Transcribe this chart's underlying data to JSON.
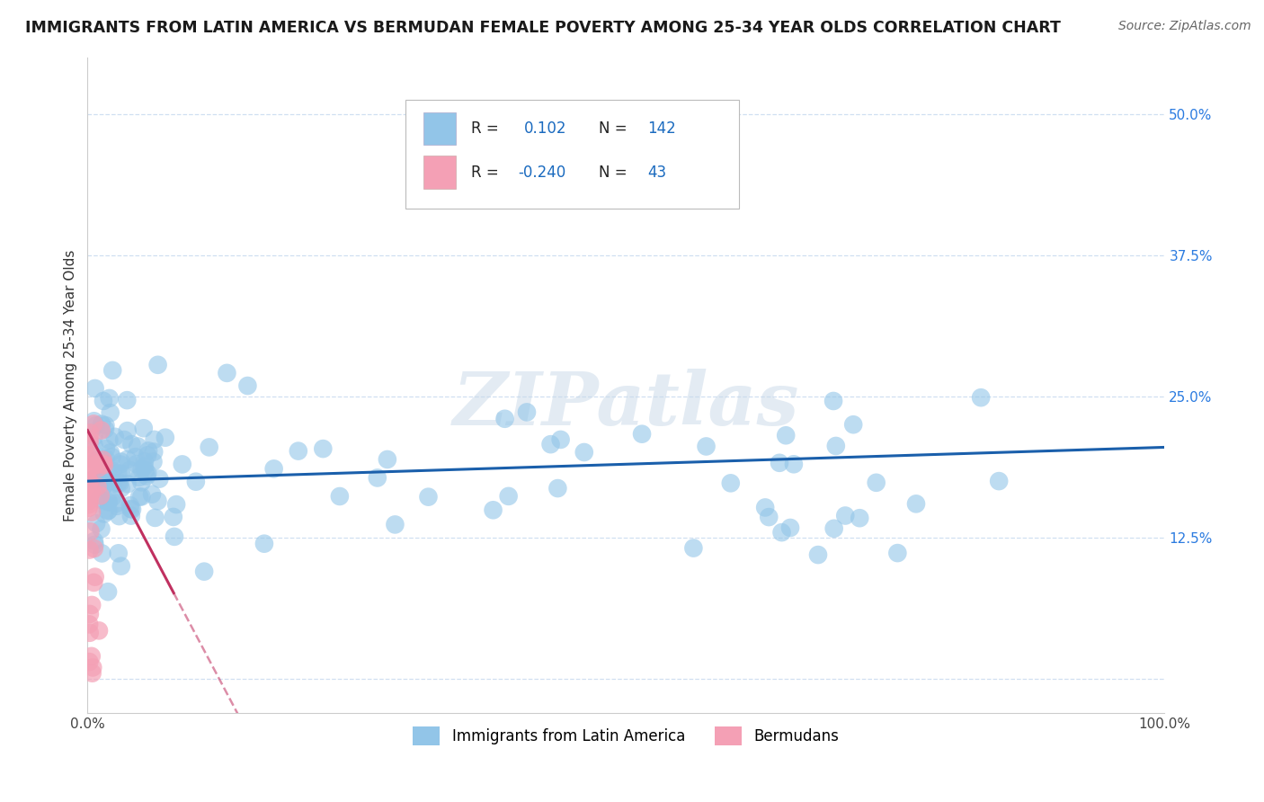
{
  "title": "IMMIGRANTS FROM LATIN AMERICA VS BERMUDAN FEMALE POVERTY AMONG 25-34 YEAR OLDS CORRELATION CHART",
  "source": "Source: ZipAtlas.com",
  "ylabel": "Female Poverty Among 25-34 Year Olds",
  "xlim": [
    0.0,
    1.0
  ],
  "ylim": [
    -0.03,
    0.55
  ],
  "xtick_labels": [
    "0.0%",
    "",
    "",
    "",
    "100.0%"
  ],
  "ytick_labels": [
    "",
    "12.5%",
    "25.0%",
    "37.5%",
    "50.0%"
  ],
  "blue_color": "#92C5E8",
  "pink_color": "#F4A0B5",
  "blue_line_color": "#1A5FAB",
  "pink_line_color": "#C03060",
  "r_blue": "0.102",
  "n_blue": "142",
  "r_pink": "-0.240",
  "n_pink": "43",
  "watermark": "ZIPatlas",
  "legend_label_blue": "Immigrants from Latin America",
  "legend_label_pink": "Bermudans"
}
